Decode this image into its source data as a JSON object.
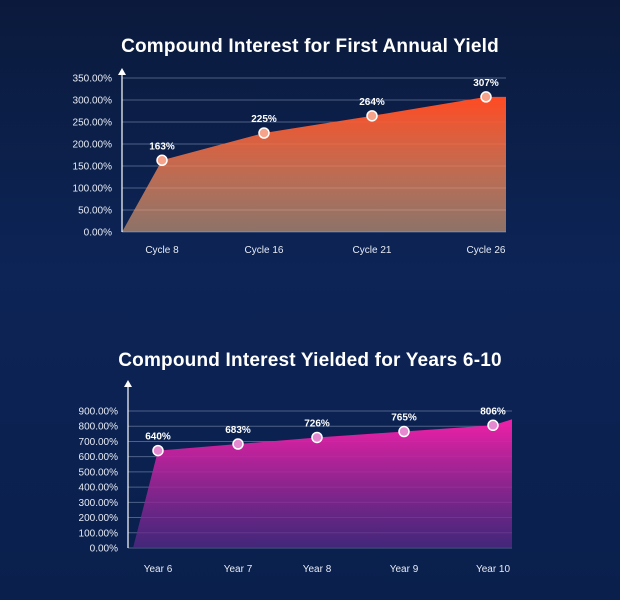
{
  "chart_data": [
    {
      "type": "area",
      "title": "Compound Interest for First Annual Yield",
      "xlabel": "",
      "ylabel": "",
      "categories": [
        "Cycle 8",
        "Cycle 16",
        "Cycle 21",
        "Cycle 26"
      ],
      "values": [
        163,
        225,
        264,
        307
      ],
      "data_labels": [
        "163%",
        "225%",
        "264%",
        "307%"
      ],
      "yticks": [
        "0.00%",
        "50.00%",
        "100.00%",
        "150.00%",
        "200.00%",
        "250.00%",
        "300.00%",
        "350.00%"
      ],
      "ylim": [
        0,
        350
      ],
      "grid": true,
      "legend": "none",
      "colors": {
        "top": "#ff4a22",
        "bottom": "#f7b27a",
        "marker": "#f5a38a"
      }
    },
    {
      "type": "area",
      "title": "Compound Interest Yielded for Years 6-10",
      "xlabel": "",
      "ylabel": "",
      "categories": [
        "Year 6",
        "Year 7",
        "Year 8",
        "Year 9",
        "Year 10"
      ],
      "values": [
        640,
        683,
        726,
        765,
        806
      ],
      "data_labels": [
        "640%",
        "683%",
        "726%",
        "765%",
        "806%"
      ],
      "yticks": [
        "0.00%",
        "100.00%",
        "200.00%",
        "300.00%",
        "400.00%",
        "500.00%",
        "600.00%",
        "700.00%",
        "800.00%",
        "900.00%"
      ],
      "ylim": [
        0,
        900
      ],
      "grid": true,
      "legend": "none",
      "colors": {
        "top": "#f020a8",
        "bottom": "#5a2a8c",
        "marker": "#e58ad0"
      }
    }
  ]
}
